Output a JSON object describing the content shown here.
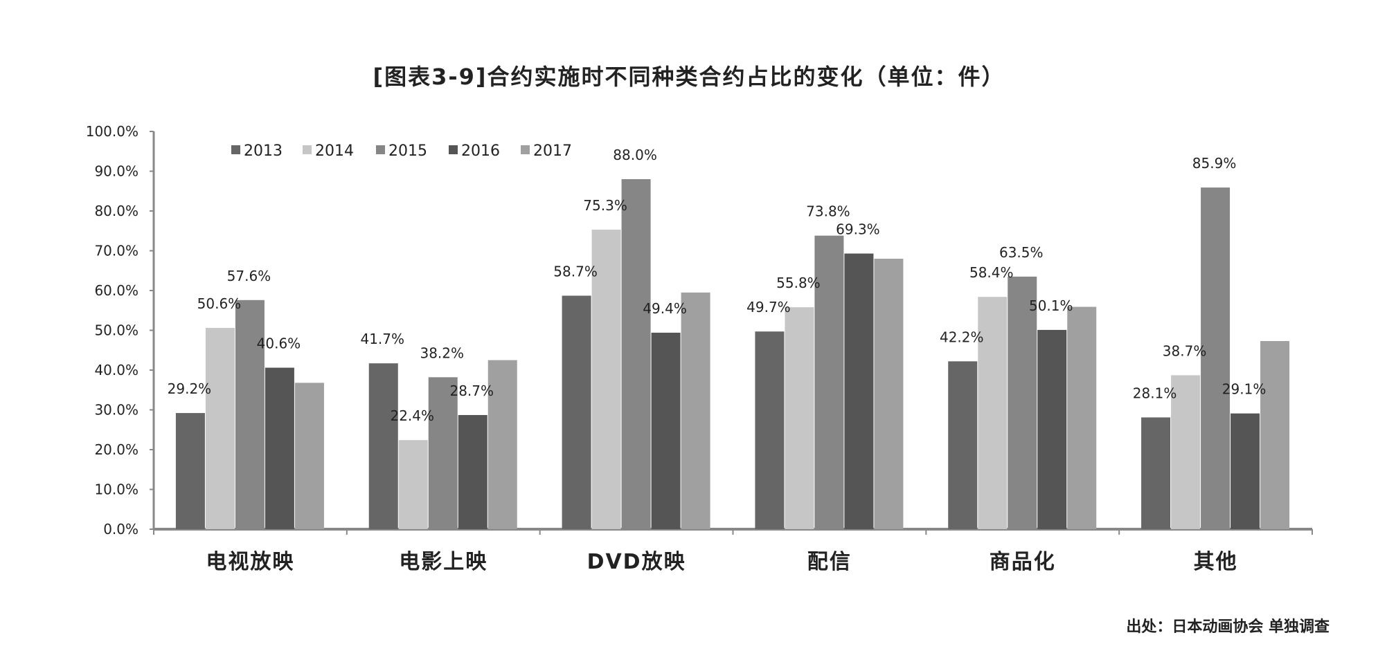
{
  "title": "[图表3-9]合约实施时不同种类合约占比的变化（单位：件）",
  "source": "出处：日本动画协会 单独调查",
  "colors": {
    "2013": "#666666",
    "2014": "#c6c6c6",
    "2015": "#868686",
    "2016": "#555555",
    "2017": "#a0a0a0",
    "axis": "#888888",
    "text": "#222222"
  },
  "chart_data": {
    "type": "bar",
    "categories": [
      "电视放映",
      "电影上映",
      "DVD放映",
      "配信",
      "商品化",
      "其他"
    ],
    "series": [
      {
        "name": "2013",
        "values": [
          29.2,
          41.7,
          58.7,
          49.7,
          42.2,
          28.1
        ]
      },
      {
        "name": "2014",
        "values": [
          50.6,
          22.4,
          75.3,
          55.8,
          58.4,
          38.7
        ]
      },
      {
        "name": "2015",
        "values": [
          57.6,
          38.2,
          88.0,
          73.8,
          63.5,
          85.9
        ]
      },
      {
        "name": "2016",
        "values": [
          40.6,
          28.7,
          49.4,
          69.3,
          50.1,
          29.1
        ]
      },
      {
        "name": "2017",
        "values": [
          36.8,
          42.5,
          59.5,
          68.0,
          55.9,
          47.3
        ]
      }
    ],
    "data_labels": [
      [
        "29.2%",
        "41.7%",
        "58.7%",
        "49.7%",
        "42.2%",
        "28.1%"
      ],
      [
        "50.6%",
        "22.4%",
        "75.3%",
        "55.8%",
        "58.4%",
        "38.7%"
      ],
      [
        "57.6%",
        "38.2%",
        "88.0%",
        "73.8%",
        "63.5%",
        "85.9%"
      ],
      [
        "40.6%",
        "28.7%",
        "49.4%",
        "69.3%",
        "50.1%",
        "29.1%"
      ],
      [
        null,
        null,
        null,
        null,
        null,
        null
      ]
    ],
    "y_ticks": [
      "0.0%",
      "10.0%",
      "20.0%",
      "30.0%",
      "40.0%",
      "50.0%",
      "60.0%",
      "70.0%",
      "80.0%",
      "90.0%",
      "100.0%"
    ],
    "ylim": [
      0,
      100
    ],
    "grid": false,
    "legend_position": "top-left"
  }
}
